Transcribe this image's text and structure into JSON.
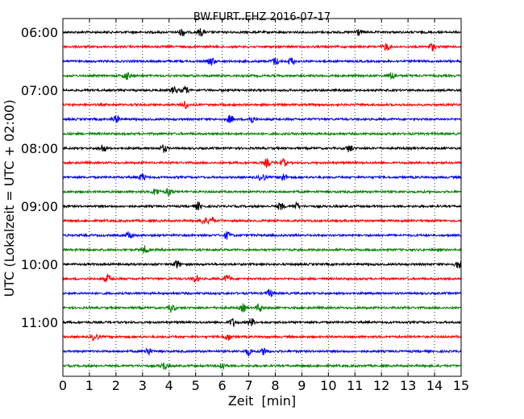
{
  "chart_data": {
    "type": "line",
    "title": "BW.FURT..EHZ 2016-07-17",
    "xlabel": "Zeit  [min]",
    "ylabel": "UTC (Lokalzeit = UTC + 02:00)",
    "xlim": [
      0,
      15
    ],
    "x_ticks": [
      0,
      1,
      2,
      3,
      4,
      5,
      6,
      7,
      8,
      9,
      10,
      11,
      12,
      13,
      14,
      15
    ],
    "y_tick_labels": [
      "06:00",
      "07:00",
      "08:00",
      "09:00",
      "10:00",
      "11:00"
    ],
    "row_interval_min": 15,
    "grid": "vertical dotted",
    "colors_cycle": [
      "#000000",
      "#ff0000",
      "#0000ff",
      "#008000"
    ],
    "traces": [
      {
        "start": "06:00",
        "color": "#000000",
        "events_min": [
          4.5,
          5.2,
          11.1
        ]
      },
      {
        "start": "06:15",
        "color": "#ff0000",
        "events_min": [
          12.2,
          13.9
        ]
      },
      {
        "start": "06:30",
        "color": "#0000ff",
        "events_min": [
          5.6,
          8.0,
          8.6
        ]
      },
      {
        "start": "06:45",
        "color": "#008000",
        "events_min": [
          2.4,
          12.4
        ]
      },
      {
        "start": "07:00",
        "color": "#000000",
        "events_min": [
          4.2,
          4.6
        ]
      },
      {
        "start": "07:15",
        "color": "#ff0000",
        "events_min": [
          4.6
        ]
      },
      {
        "start": "07:30",
        "color": "#0000ff",
        "events_min": [
          2.0,
          6.3,
          7.1
        ]
      },
      {
        "start": "07:45",
        "color": "#008000",
        "events_min": []
      },
      {
        "start": "08:00",
        "color": "#000000",
        "events_min": [
          1.5,
          3.8,
          10.8
        ]
      },
      {
        "start": "08:15",
        "color": "#ff0000",
        "events_min": [
          7.7,
          8.3
        ]
      },
      {
        "start": "08:30",
        "color": "#0000ff",
        "events_min": [
          3.0,
          7.5,
          8.3
        ]
      },
      {
        "start": "08:45",
        "color": "#008000",
        "events_min": [
          3.5,
          4.0
        ]
      },
      {
        "start": "09:00",
        "color": "#000000",
        "events_min": [
          5.1,
          8.2,
          8.8
        ]
      },
      {
        "start": "09:15",
        "color": "#ff0000",
        "events_min": [
          5.3,
          5.6
        ]
      },
      {
        "start": "09:30",
        "color": "#0000ff",
        "events_min": [
          2.5,
          6.2
        ]
      },
      {
        "start": "09:45",
        "color": "#008000",
        "events_min": [
          3.1
        ]
      },
      {
        "start": "10:00",
        "color": "#000000",
        "events_min": [
          4.3,
          14.9
        ]
      },
      {
        "start": "10:15",
        "color": "#ff0000",
        "events_min": [
          1.7,
          5.0,
          6.2
        ]
      },
      {
        "start": "10:30",
        "color": "#0000ff",
        "events_min": [
          7.8
        ]
      },
      {
        "start": "10:45",
        "color": "#008000",
        "events_min": [
          4.1,
          6.8,
          7.4
        ]
      },
      {
        "start": "11:00",
        "color": "#000000",
        "events_min": [
          6.4,
          7.1
        ]
      },
      {
        "start": "11:15",
        "color": "#ff0000",
        "events_min": [
          1.2,
          6.2
        ]
      },
      {
        "start": "11:30",
        "color": "#0000ff",
        "events_min": [
          3.2,
          7.0,
          7.6
        ]
      },
      {
        "start": "11:45",
        "color": "#008000",
        "events_min": [
          3.8,
          6.0
        ]
      }
    ]
  }
}
